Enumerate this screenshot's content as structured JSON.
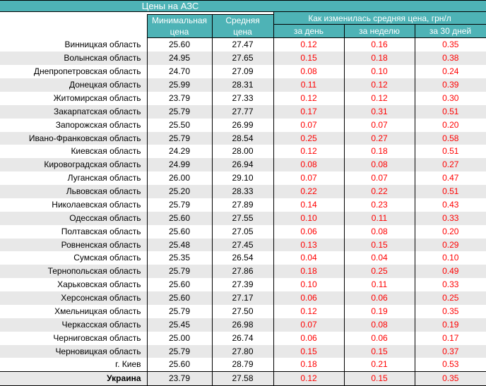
{
  "title": "Цены на АЗС",
  "table": {
    "col_region_header": "",
    "col_min": "Минимальная\nцена",
    "col_avg": "Средняя\nцена",
    "col_change_group": "Как изменилась средняя цена, грн/л",
    "col_change_day": "за день",
    "col_change_week": "за неделю",
    "col_change_month": "за 30 дней"
  },
  "colors": {
    "header_teal": "#4EB3B6",
    "row_stripe_gray": "#E8E8E8",
    "change_value_red": "#FF0000",
    "header_text": "#FFFFFF",
    "body_text": "#000000",
    "grid_border": "#000000"
  },
  "chart_data": {
    "type": "table",
    "title": "Цены на АЗС",
    "columns": [
      "Регион",
      "Минимальная цена",
      "Средняя цена",
      "за день",
      "за неделю",
      "за 30 дней"
    ],
    "column_group": "Как изменилась средняя цена, грн/л",
    "rows": [
      [
        "Винницкая область",
        "25.60",
        "27.47",
        "0.12",
        "0.16",
        "0.35"
      ],
      [
        "Волынская область",
        "24.95",
        "27.65",
        "0.15",
        "0.18",
        "0.38"
      ],
      [
        "Днепропетровская область",
        "24.70",
        "27.09",
        "0.08",
        "0.10",
        "0.24"
      ],
      [
        "Донецкая область",
        "25.99",
        "28.31",
        "0.11",
        "0.12",
        "0.39"
      ],
      [
        "Житомирская область",
        "23.79",
        "27.33",
        "0.12",
        "0.12",
        "0.30"
      ],
      [
        "Закарпатская область",
        "25.79",
        "27.77",
        "0.17",
        "0.31",
        "0.51"
      ],
      [
        "Запорожская область",
        "25.50",
        "26.99",
        "0.07",
        "0.07",
        "0.20"
      ],
      [
        "Ивано-Франковская область",
        "25.79",
        "28.54",
        "0.25",
        "0.27",
        "0.58"
      ],
      [
        "Киевская область",
        "24.29",
        "28.00",
        "0.12",
        "0.18",
        "0.51"
      ],
      [
        "Кировоградская область",
        "24.99",
        "26.94",
        "0.08",
        "0.08",
        "0.27"
      ],
      [
        "Луганская область",
        "26.00",
        "29.10",
        "0.07",
        "0.07",
        "0.47"
      ],
      [
        "Львовская область",
        "25.20",
        "28.33",
        "0.22",
        "0.22",
        "0.51"
      ],
      [
        "Николаевская область",
        "25.79",
        "27.89",
        "0.14",
        "0.23",
        "0.43"
      ],
      [
        "Одесская область",
        "25.60",
        "27.55",
        "0.10",
        "0.11",
        "0.33"
      ],
      [
        "Полтавская область",
        "25.60",
        "27.05",
        "0.06",
        "0.08",
        "0.20"
      ],
      [
        "Ровненская область",
        "25.48",
        "27.45",
        "0.13",
        "0.15",
        "0.29"
      ],
      [
        "Сумская область",
        "25.35",
        "26.54",
        "0.04",
        "0.04",
        "0.10"
      ],
      [
        "Тернопольская область",
        "25.79",
        "27.86",
        "0.18",
        "0.25",
        "0.49"
      ],
      [
        "Харьковская область",
        "25.60",
        "27.39",
        "0.10",
        "0.11",
        "0.33"
      ],
      [
        "Херсонская область",
        "25.60",
        "27.17",
        "0.06",
        "0.06",
        "0.25"
      ],
      [
        "Хмельницкая область",
        "25.79",
        "27.50",
        "0.12",
        "0.19",
        "0.35"
      ],
      [
        "Черкасская область",
        "25.45",
        "26.98",
        "0.07",
        "0.08",
        "0.19"
      ],
      [
        "Черниговская область",
        "25.00",
        "26.74",
        "0.06",
        "0.06",
        "0.17"
      ],
      [
        "Черновицкая область",
        "25.79",
        "27.80",
        "0.15",
        "0.15",
        "0.37"
      ],
      [
        "г. Киев",
        "25.60",
        "28.79",
        "0.18",
        "0.21",
        "0.53"
      ],
      [
        "Украина",
        "23.79",
        "27.58",
        "0.12",
        "0.15",
        "0.35"
      ]
    ],
    "total_row_label": "Украина",
    "notes": "values in change columns shown in red; rows striped white/gray; totals row bold label with black rule above"
  }
}
